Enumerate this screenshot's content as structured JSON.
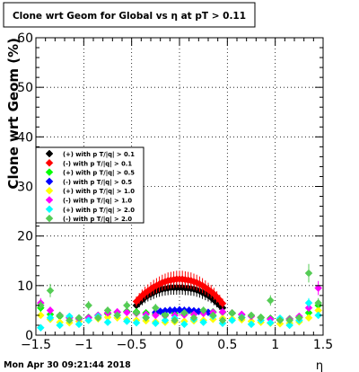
{
  "chart_data": {
    "type": "scatter",
    "title": "Clone wrt Geom for Global vs   η at pT > 0.11",
    "xlabel": "η",
    "ylabel": "Clone wrt Geom (%)",
    "xlim": [
      -1.5,
      1.5
    ],
    "ylim": [
      0,
      60
    ],
    "xticks": [
      -1.5,
      -1,
      -0.5,
      0,
      0.5,
      1,
      1.5
    ],
    "xtick_labels": [
      "−1.5",
      "−1",
      "−0.5",
      "0",
      "0.5",
      "1",
      "1.5"
    ],
    "yticks": [
      0,
      10,
      20,
      30,
      40,
      50,
      60
    ],
    "ytick_labels": [
      "0",
      "10",
      "20",
      "30",
      "40",
      "50",
      "60"
    ],
    "grid": true,
    "legend_position": "left-middle",
    "footer": "Mon Apr 30 09:21:44 2018",
    "series": [
      {
        "name": "(+) with p T/|q| > 0.1",
        "color": "#000000",
        "x": [
          -0.45,
          -0.42,
          -0.39,
          -0.36,
          -0.33,
          -0.3,
          -0.27,
          -0.24,
          -0.21,
          -0.18,
          -0.15,
          -0.12,
          -0.09,
          -0.06,
          -0.03,
          0.0,
          0.03,
          0.06,
          0.09,
          0.12,
          0.15,
          0.18,
          0.21,
          0.24,
          0.27,
          0.3,
          0.33,
          0.36,
          0.39,
          0.42,
          0.45
        ],
        "y": [
          6.0,
          6.6,
          7.1,
          7.6,
          8.0,
          8.3,
          8.6,
          8.9,
          9.1,
          9.3,
          9.4,
          9.5,
          9.6,
          9.6,
          9.6,
          9.6,
          9.6,
          9.5,
          9.5,
          9.4,
          9.3,
          9.1,
          8.9,
          8.6,
          8.3,
          8.0,
          7.6,
          7.1,
          6.6,
          6.0,
          5.5
        ]
      },
      {
        "name": "(-) with p T/|q| > 0.1",
        "color": "#ff0000",
        "x": [
          -0.45,
          -0.42,
          -0.39,
          -0.36,
          -0.33,
          -0.3,
          -0.27,
          -0.24,
          -0.21,
          -0.18,
          -0.15,
          -0.12,
          -0.09,
          -0.06,
          -0.03,
          0.0,
          0.03,
          0.06,
          0.09,
          0.12,
          0.15,
          0.18,
          0.21,
          0.24,
          0.27,
          0.3,
          0.33,
          0.36,
          0.39,
          0.42,
          0.45
        ],
        "y": [
          6.8,
          7.4,
          8.0,
          8.5,
          8.9,
          9.3,
          9.7,
          10.0,
          10.3,
          10.6,
          10.8,
          11.0,
          11.1,
          11.2,
          11.3,
          11.3,
          11.3,
          11.2,
          11.1,
          11.0,
          10.8,
          10.6,
          10.3,
          10.0,
          9.6,
          9.2,
          8.8,
          8.3,
          7.7,
          7.1,
          6.4
        ]
      },
      {
        "name": "(+) with p T/|q| > 0.5",
        "color": "#00ff00",
        "x": [
          -1.45,
          -1.35,
          -1.25,
          -1.15,
          -1.05,
          -0.95,
          -0.85,
          -0.75,
          -0.65,
          -0.55,
          -0.45,
          -0.35,
          -0.25,
          -0.15,
          -0.05,
          0.05,
          0.15,
          0.25,
          0.35,
          0.45,
          0.55,
          0.65,
          0.75,
          0.85,
          0.95,
          1.05,
          1.15,
          1.25,
          1.35,
          1.45
        ],
        "y": [
          5.5,
          4.2,
          3.8,
          3.5,
          3.3,
          3.6,
          4.0,
          4.3,
          4.6,
          4.8,
          4.7,
          4.5,
          4.3,
          4.2,
          4.4,
          4.3,
          4.4,
          4.5,
          4.7,
          4.6,
          4.4,
          4.1,
          3.8,
          3.6,
          3.4,
          3.2,
          3.3,
          3.6,
          4.5,
          6.0
        ]
      },
      {
        "name": "(-) with p T/|q| > 0.5",
        "color": "#0000ff",
        "x": [
          -0.25,
          -0.2,
          -0.15,
          -0.1,
          -0.05,
          0.0,
          0.05,
          0.1,
          0.15,
          0.2,
          0.25,
          0.3
        ],
        "y": [
          4.6,
          4.8,
          4.9,
          5.0,
          5.0,
          5.1,
          5.0,
          5.0,
          4.9,
          4.8,
          4.7,
          4.6
        ]
      },
      {
        "name": "(+) with p T/|q| > 1.0",
        "color": "#ffff00",
        "x": [
          -1.45,
          -1.35,
          -1.25,
          -1.15,
          -1.05,
          -0.95,
          -0.85,
          -0.75,
          -0.65,
          -0.55,
          -0.45,
          -0.35,
          -0.25,
          -0.15,
          -0.05,
          0.05,
          0.15,
          0.25,
          0.35,
          0.45,
          0.55,
          0.65,
          0.75,
          0.85,
          0.95,
          1.05,
          1.15,
          1.25,
          1.35,
          1.45
        ],
        "y": [
          4.0,
          3.2,
          2.6,
          2.5,
          2.8,
          3.0,
          3.3,
          3.6,
          3.5,
          3.2,
          3.0,
          2.9,
          2.7,
          2.6,
          2.7,
          2.8,
          2.9,
          3.0,
          3.2,
          3.4,
          3.3,
          3.1,
          2.8,
          2.6,
          2.4,
          2.3,
          2.4,
          2.7,
          3.5,
          5.0
        ]
      },
      {
        "name": "(-) with p T/|q| > 1.0",
        "color": "#ff00ff",
        "x": [
          -1.45,
          -1.35,
          -1.25,
          -1.15,
          -1.05,
          -0.95,
          -0.85,
          -0.75,
          -0.65,
          -0.55,
          -0.45,
          -0.35,
          -0.25,
          -0.15,
          -0.05,
          0.05,
          0.15,
          0.25,
          0.35,
          0.45,
          0.55,
          0.65,
          0.75,
          0.85,
          0.95,
          1.05,
          1.15,
          1.25,
          1.35,
          1.45
        ],
        "y": [
          6.5,
          5.0,
          4.0,
          3.5,
          3.3,
          3.5,
          4.0,
          4.5,
          4.7,
          4.6,
          4.4,
          4.2,
          4.0,
          3.9,
          4.0,
          4.1,
          4.2,
          4.4,
          4.6,
          4.7,
          4.5,
          4.2,
          3.8,
          3.5,
          3.2,
          3.0,
          3.2,
          3.8,
          5.5,
          9.5
        ]
      },
      {
        "name": "(+) with p T/|q| > 2.0",
        "color": "#00ffff",
        "x": [
          -1.45,
          -1.35,
          -1.25,
          -1.15,
          -1.05,
          -0.95,
          -0.85,
          -0.75,
          -0.65,
          -0.55,
          -0.45,
          -0.35,
          -0.25,
          -0.15,
          -0.05,
          0.05,
          0.15,
          0.25,
          0.35,
          0.45,
          0.55,
          0.65,
          0.75,
          0.85,
          0.95,
          1.05,
          1.15,
          1.25,
          1.35,
          1.45
        ],
        "y": [
          1.5,
          3.5,
          2.0,
          3.8,
          2.2,
          3.0,
          3.8,
          2.6,
          4.0,
          2.8,
          2.5,
          3.6,
          2.4,
          3.0,
          3.4,
          2.2,
          3.2,
          2.6,
          3.8,
          2.4,
          3.0,
          3.6,
          2.2,
          3.0,
          2.5,
          3.4,
          2.0,
          3.0,
          6.5,
          4.0
        ]
      },
      {
        "name": "(-) with p T/|q| > 2.0",
        "color": "#55cc55",
        "x": [
          -1.45,
          -1.35,
          -1.25,
          -1.15,
          -1.05,
          -0.95,
          -0.85,
          -0.75,
          -0.65,
          -0.55,
          -0.45,
          -0.35,
          -0.25,
          -0.15,
          -0.05,
          0.05,
          0.15,
          0.25,
          0.35,
          0.45,
          0.55,
          0.65,
          0.75,
          0.85,
          0.95,
          1.05,
          1.15,
          1.25,
          1.35,
          1.45
        ],
        "y": [
          6.0,
          9.0,
          4.0,
          3.0,
          3.5,
          6.0,
          3.5,
          5.0,
          4.0,
          6.0,
          4.5,
          3.5,
          5.5,
          4.0,
          3.0,
          4.5,
          3.5,
          5.0,
          4.0,
          3.0,
          4.5,
          3.5,
          4.0,
          3.5,
          7.0,
          3.0,
          3.0,
          3.5,
          12.5,
          6.5
        ]
      }
    ]
  }
}
